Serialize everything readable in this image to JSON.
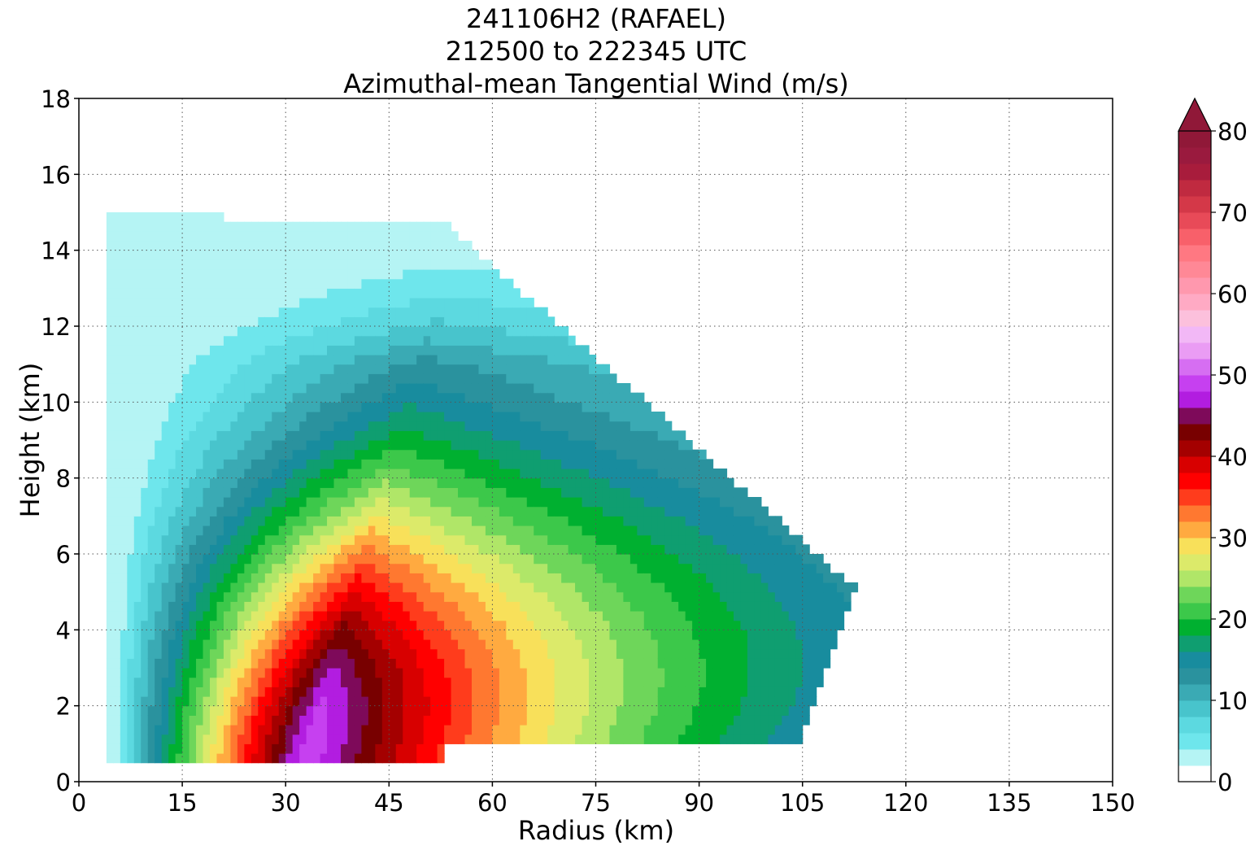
{
  "chart_data": {
    "type": "heatmap",
    "title": [
      "241106H2 (RAFAEL)",
      "212500 to 222345 UTC",
      "Azimuthal-mean Tangential Wind (m/s)"
    ],
    "xlabel": "Radius (km)",
    "ylabel": "Height (km)",
    "xlim": [
      0,
      150
    ],
    "ylim": [
      0,
      18
    ],
    "xticks": [
      0,
      15,
      30,
      45,
      60,
      75,
      90,
      105,
      120,
      135,
      150
    ],
    "yticks": [
      0,
      2,
      4,
      6,
      8,
      10,
      12,
      14,
      16,
      18
    ],
    "grid": true,
    "colorbar": {
      "ticks": [
        0,
        10,
        20,
        30,
        40,
        50,
        60,
        70,
        80
      ],
      "levels_step": 2,
      "extend": "max",
      "colors": [
        "#ffffff",
        "#b5f4f4",
        "#6ee6ec",
        "#5cd9e0",
        "#48c4cc",
        "#3aaab4",
        "#2a929e",
        "#188c9e",
        "#0f9e70",
        "#00b030",
        "#3cc84a",
        "#6ed65a",
        "#b0e668",
        "#dcea6a",
        "#f8e05a",
        "#ffaa40",
        "#ff7830",
        "#ff3c1c",
        "#ff0000",
        "#d80000",
        "#a40000",
        "#780000",
        "#7e0a5a",
        "#b21de0",
        "#c640f0",
        "#d66ef2",
        "#ea9cf4",
        "#f2b8f6",
        "#fcc0dc",
        "#ffaac4",
        "#ff98ae",
        "#ff8896",
        "#ff7882",
        "#f8606a",
        "#e84a58",
        "#d43848",
        "#c02a40",
        "#a81c3c",
        "#9a1a3e",
        "#901838"
      ]
    },
    "field_description_points": {
      "radius_km": [
        5,
        10,
        15,
        20,
        25,
        30,
        35,
        40,
        45,
        50,
        55,
        60,
        65,
        70,
        75,
        80,
        85,
        90,
        95,
        100,
        105,
        110
      ],
      "height_km": [
        1,
        2,
        3,
        4,
        5,
        6,
        7,
        8,
        9,
        10,
        11,
        12,
        13,
        14,
        15
      ],
      "max_wind_ms": 44,
      "max_wind_radius_km": 31,
      "max_wind_height_km": 0.7
    }
  }
}
